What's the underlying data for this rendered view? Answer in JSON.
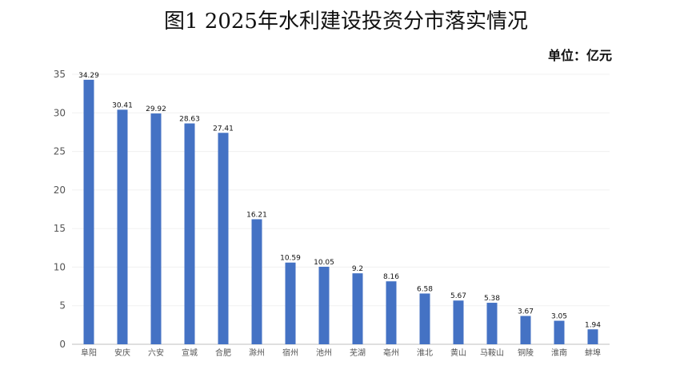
{
  "title": "图1  2025年水利建设投资分市落实情况",
  "unit": "单位：亿元",
  "chart_data": {
    "type": "bar",
    "categories": [
      "阜阳",
      "安庆",
      "六安",
      "宣城",
      "合肥",
      "滁州",
      "宿州",
      "池州",
      "芜湖",
      "亳州",
      "淮北",
      "黄山",
      "马鞍山",
      "铜陵",
      "淮南",
      "蚌埠"
    ],
    "values": [
      34.29,
      30.41,
      29.92,
      28.63,
      27.41,
      16.21,
      10.59,
      10.05,
      9.2,
      8.16,
      6.58,
      5.67,
      5.38,
      3.67,
      3.05,
      1.94
    ],
    "data_labels": [
      "34.29",
      "30.41",
      "29.92",
      "28.63",
      "27.41",
      "16.21",
      "10.59",
      "10.05",
      "9.2",
      "8.16",
      "6.58",
      "5.67",
      "5.38",
      "3.67",
      "3.05",
      "1.94"
    ],
    "ylim": [
      0,
      35
    ],
    "yticks": [
      0,
      5,
      10,
      15,
      20,
      25,
      30,
      35
    ],
    "bar_color": "#4472c4",
    "grid": true,
    "legend": "none"
  }
}
